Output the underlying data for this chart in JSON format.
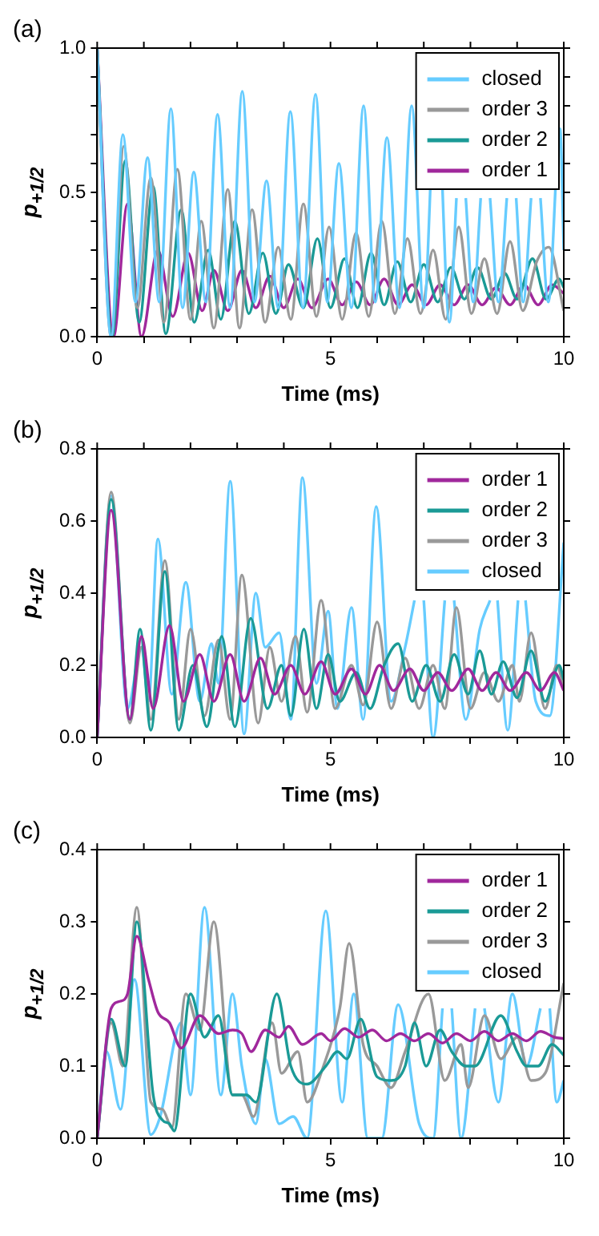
{
  "chart_data": [
    {
      "type": "line",
      "title": "(a)",
      "xlabel": "Time (ms)",
      "ylabel": "p$_{+1/2}$",
      "xlim": [
        0,
        10
      ],
      "ylim": [
        0,
        1
      ],
      "xticks": [
        0,
        {
          "value": 1,
          "label": null
        },
        {
          "value": 2,
          "label": null
        },
        {
          "value": 3,
          "label": null
        },
        {
          "value": 4,
          "label": null
        },
        5,
        {
          "value": 6,
          "label": null
        },
        {
          "value": 7,
          "label": null
        },
        {
          "value": 8,
          "label": null
        },
        {
          "value": 9,
          "label": null
        },
        10
      ],
      "yticks": [
        {
          "value": 0,
          "label": "0.0"
        },
        {
          "value": 0.1,
          "label": null
        },
        {
          "value": 0.2,
          "label": null
        },
        {
          "value": 0.3,
          "label": null
        },
        {
          "value": 0.4,
          "label": null
        },
        {
          "value": 0.5,
          "label": "0.5"
        },
        {
          "value": 0.6,
          "label": null
        },
        {
          "value": 0.7,
          "label": null
        },
        {
          "value": 0.8,
          "label": null
        },
        {
          "value": 0.9,
          "label": null
        },
        {
          "value": 1,
          "label": "1.0"
        }
      ],
      "grid": false,
      "legend": "top right",
      "series": [
        {
          "name": "closed",
          "color": "#66ccff",
          "x": [
            0,
            0.3,
            0.55,
            0.82,
            1.08,
            1.33,
            1.58,
            1.83,
            2.07,
            2.33,
            2.58,
            2.85,
            3.11,
            3.37,
            3.63,
            3.88,
            4.14,
            4.41,
            4.68,
            4.93,
            5.18,
            5.45,
            5.71,
            5.96,
            6.21,
            6.48,
            6.74,
            7,
            7.27,
            7.55,
            7.7,
            7.8,
            7.9,
            8.06,
            8.22,
            8.32,
            8.42,
            8.6,
            8.78,
            8.88,
            8.98,
            9.13,
            9.3,
            9.4,
            9.5,
            9.67,
            9.92,
            10
          ],
          "values": [
            1,
            0,
            0.7,
            0.12,
            0.62,
            0.12,
            0.79,
            0.1,
            0.57,
            0.12,
            0.77,
            0.1,
            0.85,
            0.12,
            0.54,
            0.1,
            0.78,
            0.1,
            0.84,
            0.12,
            0.6,
            0.1,
            0.8,
            0.12,
            0.69,
            0.1,
            0.8,
            0.1,
            0.89,
            0.05,
            0.48,
            null,
            0.48,
            0.12,
            0.48,
            null,
            0.48,
            0.12,
            0.48,
            null,
            0.48,
            0.12,
            0.48,
            null,
            0.48,
            0.12,
            0.72,
            0.3
          ]
        },
        {
          "name": "order 3",
          "color": "#999999",
          "x": [
            0,
            0.3,
            0.57,
            0.86,
            1.15,
            1.43,
            1.72,
            2,
            2.23,
            2.5,
            2.8,
            3.05,
            3.32,
            3.6,
            3.88,
            4.15,
            4.42,
            4.7,
            4.97,
            5.25,
            5.55,
            5.82,
            6.1,
            6.38,
            6.65,
            6.93,
            7.2,
            7.47,
            7.75,
            8.02,
            8.3,
            8.57,
            8.85,
            9.12,
            9.42,
            9.68,
            10
          ],
          "values": [
            1,
            0,
            0.66,
            0.1,
            0.55,
            0.05,
            0.58,
            0.06,
            0.4,
            0.03,
            0.51,
            0.03,
            0.44,
            0.05,
            0.31,
            0.06,
            0.46,
            0.07,
            0.38,
            0.06,
            0.36,
            0.07,
            0.4,
            0.08,
            0.34,
            0.08,
            0.3,
            0.06,
            0.38,
            0.08,
            0.27,
            0.08,
            0.33,
            0.09,
            0.26,
            0.31,
            0.09
          ]
        },
        {
          "name": "order 2",
          "color": "#1a9a96",
          "x": [
            0,
            0.32,
            0.6,
            0.9,
            1.2,
            1.47,
            1.8,
            2.08,
            2.38,
            2.65,
            2.95,
            3.25,
            3.55,
            3.83,
            4.1,
            4.42,
            4.72,
            5,
            5.3,
            5.58,
            5.87,
            6.15,
            6.43,
            6.72,
            7,
            7.3,
            7.58,
            7.87,
            8.15,
            8.45,
            8.73,
            9,
            9.33,
            9.62,
            9.9,
            10
          ],
          "values": [
            1,
            0,
            0.61,
            0.05,
            0.52,
            0.01,
            0.44,
            0.05,
            0.3,
            0.06,
            0.4,
            0.08,
            0.29,
            0.08,
            0.25,
            0.1,
            0.34,
            0.1,
            0.27,
            0.1,
            0.29,
            0.11,
            0.26,
            0.12,
            0.25,
            0.12,
            0.24,
            0.13,
            0.24,
            0.13,
            0.22,
            0.13,
            0.27,
            0.13,
            0.2,
            0.17
          ]
        },
        {
          "name": "order 1",
          "color": "#a0289c",
          "x": [
            0,
            0.35,
            0.65,
            0.95,
            1.3,
            1.62,
            1.95,
            2.25,
            2.5,
            2.8,
            3.1,
            3.4,
            3.7,
            4,
            4.3,
            4.6,
            4.95,
            5.25,
            5.55,
            5.85,
            6.15,
            6.45,
            6.75,
            7.05,
            7.35,
            7.65,
            7.95,
            8.25,
            8.55,
            8.85,
            9.15,
            9.45,
            9.75,
            10
          ],
          "values": [
            1,
            0,
            0.46,
            0,
            0.3,
            0.07,
            0.29,
            0.09,
            0.23,
            0.09,
            0.23,
            0.1,
            0.21,
            0.1,
            0.2,
            0.1,
            0.2,
            0.11,
            0.19,
            0.11,
            0.2,
            0.11,
            0.18,
            0.11,
            0.18,
            0.11,
            0.18,
            0.11,
            0.17,
            0.11,
            0.18,
            0.11,
            0.18,
            0.15
          ]
        }
      ]
    },
    {
      "type": "line",
      "title": "(b)",
      "xlabel": "Time (ms)",
      "ylabel": "p$_{+1/2}$",
      "xlim": [
        0,
        10
      ],
      "ylim": [
        0,
        0.8
      ],
      "xticks": [
        0,
        {
          "value": 1,
          "label": null
        },
        {
          "value": 2,
          "label": null
        },
        {
          "value": 3,
          "label": null
        },
        {
          "value": 4,
          "label": null
        },
        5,
        {
          "value": 6,
          "label": null
        },
        {
          "value": 7,
          "label": null
        },
        {
          "value": 8,
          "label": null
        },
        {
          "value": 9,
          "label": null
        },
        10
      ],
      "yticks": [
        {
          "value": 0,
          "label": "0.0"
        },
        0.2,
        0.4,
        0.6,
        0.8
      ],
      "grid": false,
      "legend": "top right",
      "series": [
        {
          "name": "order 1",
          "color": "#a0289c",
          "x": [
            0,
            0.3,
            0.7,
            0.95,
            1.2,
            1.55,
            1.85,
            2.2,
            2.5,
            2.85,
            3.15,
            3.5,
            3.8,
            4.15,
            4.45,
            4.8,
            5.1,
            5.45,
            5.75,
            6.05,
            6.35,
            6.7,
            7,
            7.3,
            7.6,
            7.95,
            8.25,
            8.55,
            8.85,
            9.2,
            9.5,
            9.8,
            10
          ],
          "values": [
            0,
            0.63,
            0.05,
            0.28,
            0.08,
            0.31,
            0.1,
            0.23,
            0.1,
            0.23,
            0.1,
            0.22,
            0.12,
            0.2,
            0.12,
            0.21,
            0.12,
            0.19,
            0.12,
            0.2,
            0.13,
            0.19,
            0.13,
            0.18,
            0.13,
            0.19,
            0.13,
            0.18,
            0.13,
            0.18,
            0.13,
            0.18,
            0.13
          ]
        },
        {
          "name": "order 2",
          "color": "#1a9a96",
          "x": [
            0,
            0.3,
            0.7,
            0.92,
            1.15,
            1.45,
            1.75,
            2.05,
            2.35,
            2.67,
            2.95,
            3.29,
            3.65,
            3.95,
            4.15,
            4.43,
            4.7,
            4.95,
            5.2,
            5.55,
            5.85,
            6.15,
            6.45,
            6.75,
            7.05,
            7.35,
            7.65,
            7.95,
            8.2,
            8.45,
            8.7,
            9,
            9.3,
            9.6,
            9.9,
            10
          ],
          "values": [
            0,
            0.66,
            0.05,
            0.3,
            0.02,
            0.46,
            0.02,
            0.2,
            0.03,
            0.28,
            0.03,
            0.33,
            0.08,
            0.2,
            0.06,
            0.3,
            0.08,
            0.23,
            0.1,
            0.18,
            0.08,
            0.2,
            0.26,
            0.1,
            0.2,
            0.1,
            0.23,
            0.12,
            0.24,
            0.12,
            0.21,
            0.11,
            0.24,
            0.1,
            0.2,
            0.16
          ]
        },
        {
          "name": "order 3",
          "color": "#999999",
          "x": [
            0,
            0.3,
            0.7,
            0.95,
            1.15,
            1.45,
            1.75,
            2,
            2.3,
            2.6,
            2.85,
            3.1,
            3.45,
            3.7,
            3.95,
            4.25,
            4.5,
            4.8,
            5.1,
            5.45,
            5.7,
            6,
            6.3,
            6.6,
            6.9,
            7.2,
            7.45,
            7.7,
            8,
            8.3,
            8.6,
            8.9,
            9.05,
            9.3,
            9.6,
            9.85,
            10
          ],
          "values": [
            0,
            0.68,
            0.04,
            0.25,
            0.05,
            0.49,
            0.05,
            0.3,
            0.06,
            0.27,
            0.05,
            0.45,
            0.04,
            0.25,
            0.1,
            0.28,
            0.07,
            0.38,
            0.08,
            0.2,
            0.09,
            0.32,
            0.08,
            0.22,
            0.08,
            0.2,
            0.08,
            0.36,
            0.08,
            0.18,
            0.1,
            0.2,
            0.1,
            0.29,
            0.08,
            0.2,
            0.14
          ]
        },
        {
          "name": "closed",
          "color": "#66ccff",
          "x": [
            0,
            0.3,
            0.65,
            0.95,
            1.1,
            1.3,
            1.6,
            1.9,
            2.2,
            2.45,
            2.6,
            2.85,
            3.15,
            3.4,
            3.6,
            3.9,
            4.15,
            4.4,
            4.7,
            4.95,
            5.15,
            5.45,
            5.7,
            5.98,
            6.3,
            6.6,
            6.8,
            6.9,
            7,
            7.2,
            7.45,
            7.55,
            7.65,
            7.9,
            8.2,
            8.42,
            8.5,
            8.58,
            8.8,
            9.02,
            9.1,
            9.18,
            9.4,
            9.7,
            10
          ],
          "values": [
            0,
            0.67,
            0.08,
            0.25,
            0.1,
            0.55,
            0.12,
            0.43,
            0.1,
            0.26,
            0.15,
            0.71,
            0.01,
            0.4,
            0.25,
            0.29,
            0.05,
            0.72,
            0.15,
            0.35,
            0.08,
            0.36,
            0.05,
            0.64,
            0.1,
            0.25,
            0.38,
            null,
            0.38,
            0,
            0.38,
            null,
            0.38,
            0.05,
            0.3,
            0.38,
            null,
            0.38,
            0.02,
            0.38,
            null,
            0.38,
            0.1,
            0.06,
            0.54
          ]
        }
      ]
    },
    {
      "type": "line",
      "title": "(c)",
      "xlabel": "Time (ms)",
      "ylabel": "p$_{+1/2}$",
      "xlim": [
        0,
        10
      ],
      "ylim": [
        0,
        0.4
      ],
      "xticks": [
        0,
        {
          "value": 1,
          "label": null
        },
        {
          "value": 2,
          "label": null
        },
        {
          "value": 3,
          "label": null
        },
        {
          "value": 4,
          "label": null
        },
        5,
        {
          "value": 6,
          "label": null
        },
        {
          "value": 7,
          "label": null
        },
        {
          "value": 8,
          "label": null
        },
        {
          "value": 9,
          "label": null
        },
        10
      ],
      "yticks": [
        {
          "value": 0,
          "label": "0.0"
        },
        0.1,
        0.2,
        0.3,
        0.4
      ],
      "grid": false,
      "legend": "top right",
      "series": [
        {
          "name": "order 1",
          "color": "#a0289c",
          "x": [
            0,
            0.3,
            0.5,
            0.65,
            0.85,
            1.1,
            1.3,
            1.55,
            1.8,
            2.2,
            2.6,
            2.9,
            3.1,
            3.3,
            3.6,
            3.9,
            4.1,
            4.4,
            4.8,
            5,
            5.3,
            5.6,
            5.9,
            6.2,
            6.5,
            6.8,
            7.1,
            7.4,
            7.7,
            8,
            8.3,
            8.6,
            8.9,
            9.2,
            9.5,
            9.8,
            10
          ],
          "values": [
            0,
            0.18,
            0.19,
            0.2,
            0.28,
            0.22,
            0.175,
            0.16,
            0.125,
            0.17,
            0.145,
            0.15,
            0.145,
            0.12,
            0.15,
            0.14,
            0.155,
            0.13,
            0.145,
            0.135,
            0.152,
            0.14,
            0.15,
            0.135,
            0.145,
            0.135,
            0.145,
            0.132,
            0.145,
            0.135,
            0.148,
            0.135,
            0.145,
            0.135,
            0.148,
            0.14,
            0.138
          ]
        },
        {
          "name": "order 2",
          "color": "#1a9a96",
          "x": [
            0,
            0.3,
            0.6,
            0.85,
            1.2,
            1.4,
            1.55,
            1.65,
            2,
            2.3,
            2.6,
            2.9,
            3.2,
            3.4,
            3.85,
            4.15,
            4.5,
            4.9,
            5.15,
            5.35,
            5.65,
            6,
            6.3,
            6.6,
            6.8,
            7.05,
            7.35,
            7.6,
            7.9,
            8.1,
            8.65,
            9,
            9.2,
            9.45,
            9.75,
            10
          ],
          "values": [
            0,
            0.165,
            0.1,
            0.3,
            0.06,
            0.025,
            0.02,
            0.01,
            0.2,
            0.14,
            0.17,
            0.06,
            0.06,
            0.05,
            0.2,
            0.1,
            0.075,
            0.1,
            0.12,
            0.11,
            0.165,
            0.085,
            0.08,
            0.1,
            0.16,
            0.1,
            0.15,
            0.12,
            0.1,
            0.1,
            0.17,
            0.12,
            0.1,
            0.1,
            0.13,
            0.115
          ]
        },
        {
          "name": "order 3",
          "color": "#999999",
          "x": [
            0,
            0.3,
            0.55,
            0.85,
            1.15,
            1.4,
            1.6,
            1.9,
            2.2,
            2.5,
            2.9,
            3.1,
            3.35,
            3.75,
            3.95,
            4.3,
            4.5,
            4.85,
            5.2,
            5.4,
            5.7,
            6,
            6.3,
            6.6,
            7.1,
            7.45,
            7.8,
            7.95,
            8.3,
            8.65,
            9,
            9.3,
            9.6,
            10
          ],
          "values": [
            0,
            0.16,
            0.1,
            0.32,
            0.05,
            0.04,
            0.015,
            0.2,
            0.15,
            0.3,
            0.06,
            0.06,
            0.03,
            0.16,
            0.09,
            0.12,
            0.05,
            0.1,
            0.18,
            0.27,
            0.13,
            0.1,
            0.07,
            0.12,
            0.2,
            0.08,
            0.13,
            0.07,
            0.17,
            0.11,
            0.14,
            0.08,
            0.09,
            0.215
          ]
        },
        {
          "name": "closed",
          "color": "#66ccff",
          "x": [
            0,
            0.2,
            0.5,
            0.8,
            1.15,
            1.35,
            1.8,
            2,
            2.3,
            2.65,
            2.9,
            3.1,
            3.4,
            3.6,
            3.9,
            4.2,
            4.5,
            4.9,
            5.25,
            5.5,
            5.8,
            6.1,
            6.45,
            6.9,
            7.2,
            7.4,
            7.5,
            7.6,
            7.8,
            8.1,
            8.2,
            8.3,
            8.6,
            8.9,
            9.2,
            9.5,
            9.6,
            9.7,
            9.85,
            10
          ],
          "values": [
            0,
            0.12,
            0.04,
            0.22,
            0.005,
            0.03,
            0.16,
            0.06,
            0.32,
            0.06,
            0.2,
            0.1,
            0.02,
            0.11,
            0.02,
            0.03,
            0,
            0.315,
            0.05,
            0.2,
            0,
            0,
            0.185,
            0.02,
            0,
            0.18,
            null,
            0.18,
            0,
            0.18,
            null,
            0.18,
            0.05,
            0.2,
            0.1,
            0.18,
            null,
            0.18,
            0.05,
            0.08
          ]
        }
      ]
    }
  ]
}
